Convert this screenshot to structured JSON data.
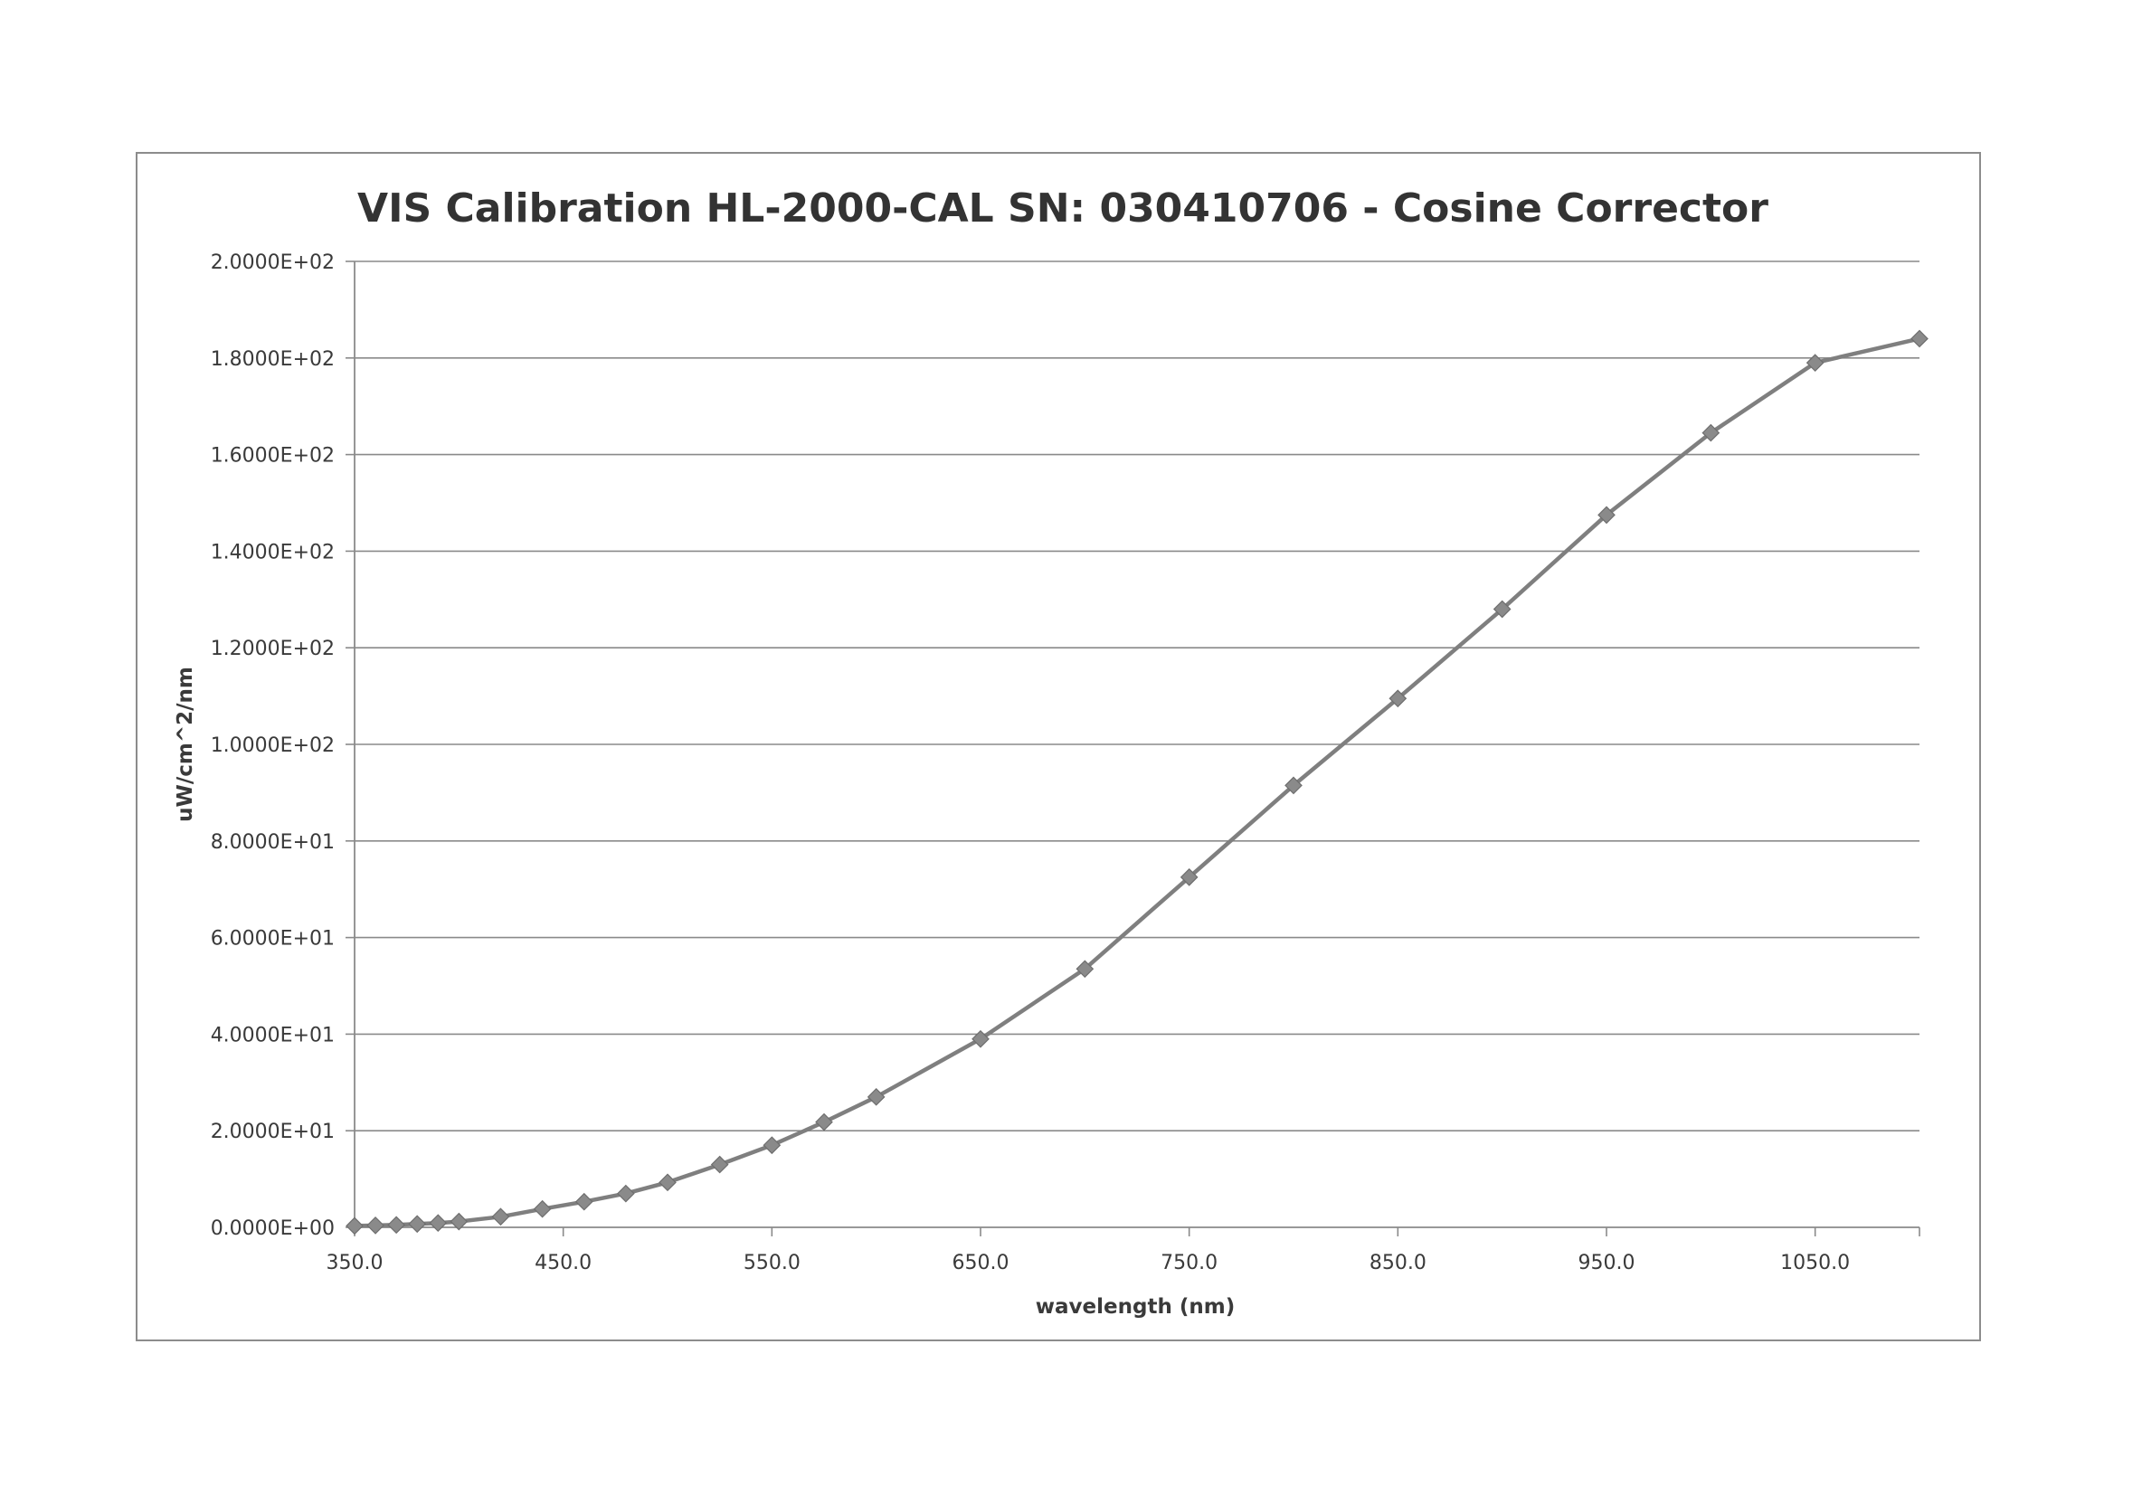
{
  "chart_data": {
    "type": "line",
    "title": "VIS Calibration HL-2000-CAL SN: 030410706 - Cosine Corrector",
    "xlabel": "wavelength (nm)",
    "ylabel": "uW/cm^2/nm",
    "xlim": [
      350,
      1100
    ],
    "ylim": [
      0,
      200
    ],
    "x_ticks": [
      350,
      450,
      550,
      650,
      750,
      850,
      950,
      1050
    ],
    "x_tick_labels": [
      "350.0",
      "450.0",
      "550.0",
      "650.0",
      "750.0",
      "850.0",
      "950.0",
      "1050.0"
    ],
    "y_ticks": [
      0,
      20,
      40,
      60,
      80,
      100,
      120,
      140,
      160,
      180,
      200
    ],
    "y_tick_labels": [
      "0.0000E+00",
      "2.0000E+01",
      "4.0000E+01",
      "6.0000E+01",
      "8.0000E+01",
      "1.0000E+02",
      "1.2000E+02",
      "1.4000E+02",
      "1.6000E+02",
      "1.8000E+02",
      "2.0000E+02"
    ],
    "grid": "horizontal",
    "legend": "none",
    "marker": "diamond",
    "line_color": "#7f7f7f",
    "marker_color": "#8a8a8a",
    "series": [
      {
        "x": [
          350,
          360,
          370,
          380,
          390,
          400,
          420,
          440,
          460,
          480,
          500,
          525,
          550,
          575,
          600,
          650,
          700,
          750,
          800,
          850,
          900,
          950,
          1000,
          1050,
          1100
        ],
        "y": [
          0.3,
          0.4,
          0.5,
          0.7,
          0.9,
          1.2,
          2.2,
          3.8,
          5.3,
          7.0,
          9.3,
          13.0,
          17.0,
          21.8,
          27.0,
          39.0,
          53.5,
          72.5,
          91.5,
          109.5,
          128.0,
          147.5,
          164.5,
          179.0,
          184.0
        ]
      }
    ]
  }
}
